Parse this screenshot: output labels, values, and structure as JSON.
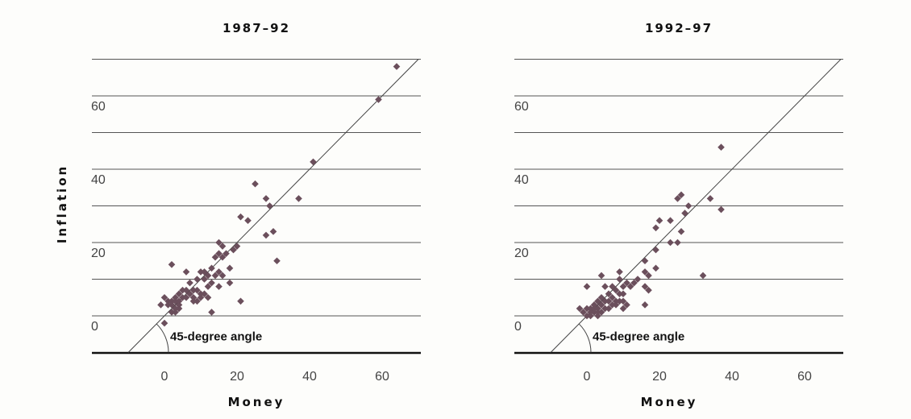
{
  "figure": {
    "ylabel": "Inflation",
    "xlabel": "Money"
  },
  "chart_data": [
    {
      "type": "scatter",
      "title": "1987–92",
      "xlabel": "Money",
      "ylabel": "Inflation",
      "xlim": [
        -10,
        70
      ],
      "ylim": [
        -10,
        70
      ],
      "xticks": [
        0,
        20,
        40,
        60
      ],
      "yticks": [
        0,
        20,
        40,
        60
      ],
      "grid": true,
      "reference_line": "45-degree line",
      "annotation": "45-degree angle",
      "points": [
        [
          64,
          68
        ],
        [
          59,
          59
        ],
        [
          41,
          42
        ],
        [
          25,
          36
        ],
        [
          37,
          32
        ],
        [
          28,
          32
        ],
        [
          29,
          30
        ],
        [
          21,
          27
        ],
        [
          23,
          26
        ],
        [
          30,
          23
        ],
        [
          28,
          22
        ],
        [
          15,
          20
        ],
        [
          16,
          19
        ],
        [
          19,
          18
        ],
        [
          20,
          19
        ],
        [
          15,
          17
        ],
        [
          14,
          16
        ],
        [
          16,
          16
        ],
        [
          17,
          17
        ],
        [
          31,
          15
        ],
        [
          2,
          14
        ],
        [
          18,
          13
        ],
        [
          13,
          13
        ],
        [
          6,
          12
        ],
        [
          10,
          12
        ],
        [
          12,
          11
        ],
        [
          11,
          12
        ],
        [
          14,
          11
        ],
        [
          15,
          12
        ],
        [
          16,
          11
        ],
        [
          9,
          10
        ],
        [
          11,
          10
        ],
        [
          13,
          9
        ],
        [
          18,
          9
        ],
        [
          7,
          9
        ],
        [
          12,
          8
        ],
        [
          15,
          8
        ],
        [
          5,
          7
        ],
        [
          6,
          7
        ],
        [
          8,
          7
        ],
        [
          9,
          7
        ],
        [
          10,
          6
        ],
        [
          4,
          6
        ],
        [
          7,
          6
        ],
        [
          11,
          6
        ],
        [
          3,
          5
        ],
        [
          5,
          5
        ],
        [
          8,
          5
        ],
        [
          9,
          4
        ],
        [
          10,
          5
        ],
        [
          12,
          5
        ],
        [
          0,
          5
        ],
        [
          1,
          4
        ],
        [
          2,
          4
        ],
        [
          3,
          4
        ],
        [
          4,
          4
        ],
        [
          6,
          5
        ],
        [
          -1,
          3
        ],
        [
          1,
          3
        ],
        [
          2,
          3
        ],
        [
          3,
          2
        ],
        [
          4,
          3
        ],
        [
          8,
          4
        ],
        [
          21,
          4
        ],
        [
          4,
          2
        ],
        [
          2,
          1
        ],
        [
          3,
          1
        ],
        [
          13,
          1
        ],
        [
          0,
          -2
        ]
      ]
    },
    {
      "type": "scatter",
      "title": "1992–97",
      "xlabel": "Money",
      "ylabel": "",
      "xlim": [
        -10,
        70
      ],
      "ylim": [
        -10,
        70
      ],
      "xticks": [
        0,
        20,
        40,
        60
      ],
      "yticks": [
        0,
        20,
        40,
        60
      ],
      "grid": true,
      "reference_line": "45-degree line",
      "annotation": "45-degree angle",
      "points": [
        [
          37,
          46
        ],
        [
          26,
          33
        ],
        [
          34,
          32
        ],
        [
          25,
          32
        ],
        [
          28,
          30
        ],
        [
          37,
          29
        ],
        [
          27,
          28
        ],
        [
          20,
          26
        ],
        [
          23,
          26
        ],
        [
          19,
          24
        ],
        [
          26,
          23
        ],
        [
          23,
          20
        ],
        [
          25,
          20
        ],
        [
          19,
          18
        ],
        [
          16,
          15
        ],
        [
          19,
          13
        ],
        [
          32,
          11
        ],
        [
          9,
          12
        ],
        [
          4,
          11
        ],
        [
          16,
          12
        ],
        [
          14,
          10
        ],
        [
          17,
          11
        ],
        [
          9,
          10
        ],
        [
          11,
          9
        ],
        [
          12,
          8
        ],
        [
          13,
          9
        ],
        [
          10,
          8
        ],
        [
          16,
          8
        ],
        [
          17,
          7
        ],
        [
          0,
          8
        ],
        [
          7,
          8
        ],
        [
          8,
          7
        ],
        [
          5,
          8
        ],
        [
          9,
          6
        ],
        [
          10,
          6
        ],
        [
          6,
          6
        ],
        [
          4,
          5
        ],
        [
          7,
          5
        ],
        [
          3,
          4
        ],
        [
          5,
          4
        ],
        [
          6,
          4
        ],
        [
          8,
          4
        ],
        [
          9,
          4
        ],
        [
          10,
          4
        ],
        [
          2,
          3
        ],
        [
          4,
          3
        ],
        [
          7,
          3
        ],
        [
          8,
          3
        ],
        [
          11,
          3
        ],
        [
          16,
          3
        ],
        [
          -2,
          2
        ],
        [
          0,
          2
        ],
        [
          1,
          2
        ],
        [
          2,
          2
        ],
        [
          3,
          2
        ],
        [
          5,
          2
        ],
        [
          6,
          2
        ],
        [
          10,
          2
        ],
        [
          -1,
          1
        ],
        [
          1,
          1
        ],
        [
          2,
          1
        ],
        [
          3,
          1
        ],
        [
          4,
          1
        ],
        [
          0,
          0
        ],
        [
          1,
          0
        ],
        [
          3,
          0
        ]
      ]
    }
  ]
}
